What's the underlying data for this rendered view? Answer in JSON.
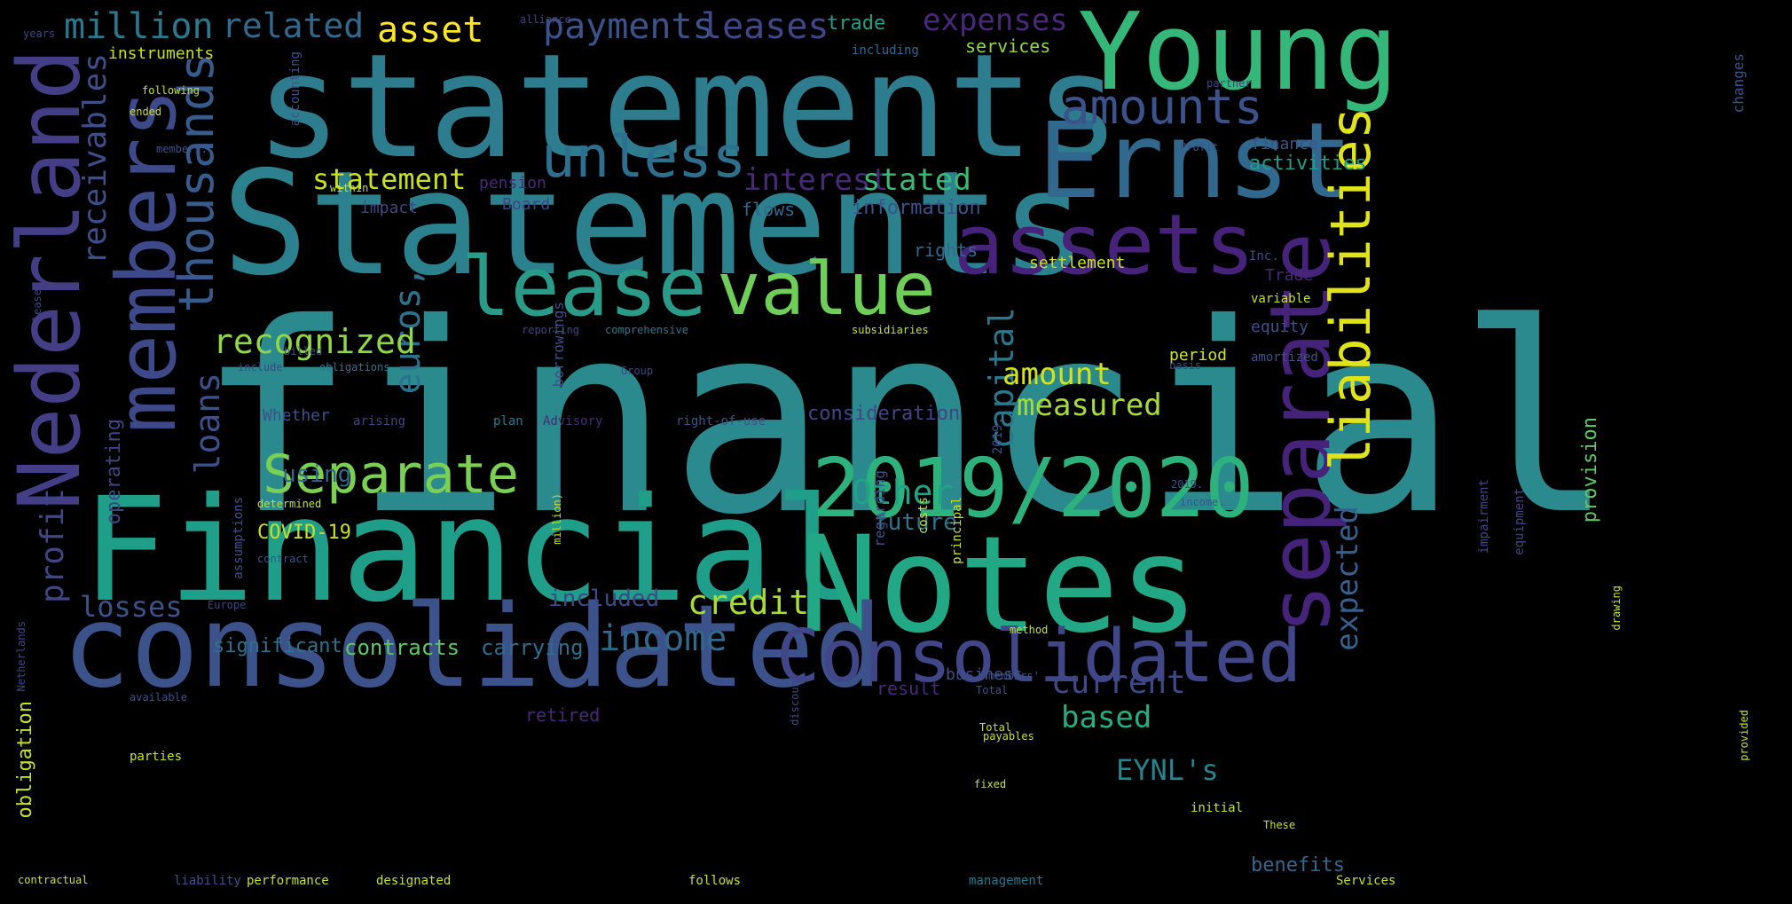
{
  "palette": {
    "background": "#000000",
    "yellow": "#fde725",
    "lime": "#b5de2b",
    "green": "#6ece58",
    "sea": "#35b779",
    "teal": "#1f9e89",
    "blue": "#26828e",
    "steel": "#31688e",
    "indigo": "#3e4989",
    "purple": "#482878",
    "violet": "#440154"
  },
  "words": {
    "financial": "financial",
    "statements": "statements",
    "Statements": "Statements",
    "Financial": "Financial",
    "Notes": "Notes",
    "consolidated": "consolidated",
    "Consolidated": "Consolidated",
    "Young": "Young",
    "Ernst": "Ernst",
    "year": "2019/2020",
    "assets": "assets",
    "separate": "separate",
    "liabilities": "liabilities",
    "Nederland": "Nederland",
    "members": "members",
    "thousands": "thousands",
    "lease": "lease",
    "value": "value",
    "unless": "unless",
    "amounts": "amounts",
    "Separate": "Separate",
    "million": "million",
    "related": "related",
    "asset": "asset",
    "payments": "payments",
    "leases": "leases",
    "expenses": "expenses",
    "trade": "trade",
    "services": "services",
    "instruments": "instruments",
    "including": "including",
    "receivables": "receivables",
    "statement": "statement",
    "interest": "interest",
    "stated": "stated",
    "information": "information",
    "activities": "activities",
    "pension": "pension",
    "Board": "Board",
    "impact": "impact",
    "flows": "flows",
    "finance": "finance",
    "recognized": "recognized",
    "amount": "amount",
    "measured": "measured",
    "euros": "euros,",
    "capital": "capital",
    "consideration": "consideration",
    "Other": "Other",
    "future": "future",
    "using": "using",
    "loans": "loans",
    "losses": "losses",
    "credit": "credit",
    "included": "included",
    "income": "income",
    "significant": "significant",
    "contracts": "contracts",
    "carrying": "carrying",
    "current": "current",
    "based": "based",
    "expected": "expected",
    "EYNL": "EYNL's",
    "profit": "profit",
    "operating": "operating",
    "obligation": "obligation",
    "COVID": "COVID-19",
    "rights": "rights",
    "settlement": "settlement",
    "equity": "equity",
    "period": "period",
    "provision": "provision",
    "benefits": "benefits",
    "result": "result",
    "business": "business",
    "retired": "retired",
    "Trade": "Trade",
    "whether": "Whether",
    "accounting": "accounting",
    "changes": "changes",
    "arising": "arising",
    "borrowings": "borrowings",
    "regarding": "regarding",
    "costs": "costs",
    "principal": "principal",
    "impairment": "impairment",
    "equipment": "equipment",
    "assumptions": "assumptions",
    "following": "following",
    "Profit": "Profit",
    "parties": "parties",
    "liability": "liability",
    "performance": "performance",
    "designated": "designated",
    "management": "management",
    "contractual": "contractual",
    "payables": "payables",
    "reporting": "reporting",
    "comprehensive": "comprehensive",
    "subsidiaries": "subsidiaries",
    "variable": "variable",
    "amortized": "amortized",
    "obligations": "obligations",
    "right_of_use": "right-of-use",
    "Advisory": "Advisory",
    "discount": "discount",
    "determined": "determined",
    "Europe": "Europe",
    "members2": "members'",
    "initial": "initial",
    "These": "These",
    "provided": "provided",
    "method": "method",
    "Total": "Total",
    "Total2": "Total",
    "fixed": "fixed",
    "follows": "follows",
    "Services": "Services",
    "drawing": "drawing",
    "lease_s": "lease",
    "basis": "basis",
    "alliance": "alliance",
    "within": "within",
    "billed": "billed",
    "plan": "plan",
    "include": "include",
    "partner": "partner",
    "Inc": "Inc.",
    "ended": "ended",
    "years": "years",
    "members3": "members.",
    "contract": "contract",
    "available": "available",
    "Netherlands": "Netherlands",
    "income2": "income.",
    "per": "2019.",
    "million2": "million)",
    "group": "Group"
  }
}
